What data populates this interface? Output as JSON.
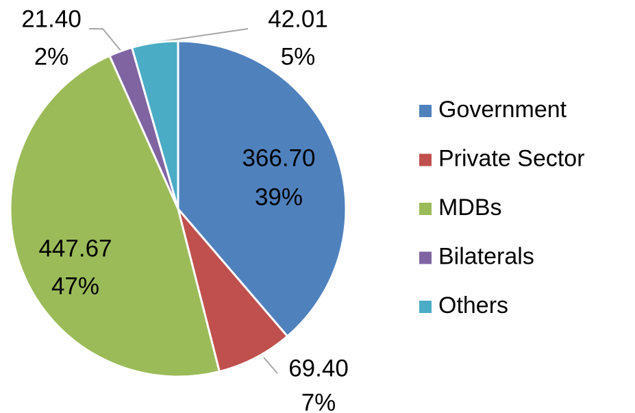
{
  "chart_data": {
    "type": "pie",
    "categories": [
      "Government",
      "Private Sector",
      "MDBs",
      "Bilaterals",
      "Others"
    ],
    "values": [
      366.7,
      69.4,
      447.67,
      21.4,
      42.01
    ],
    "value_labels": [
      "366.70",
      "69.40",
      "447.67",
      "21.40",
      "42.01"
    ],
    "percent_labels": [
      "39%",
      "7%",
      "47%",
      "2%",
      "5%"
    ],
    "colors": [
      "#4f81bd",
      "#c0504d",
      "#9bbb59",
      "#8064a2",
      "#4bacc6"
    ],
    "legend": "right"
  }
}
